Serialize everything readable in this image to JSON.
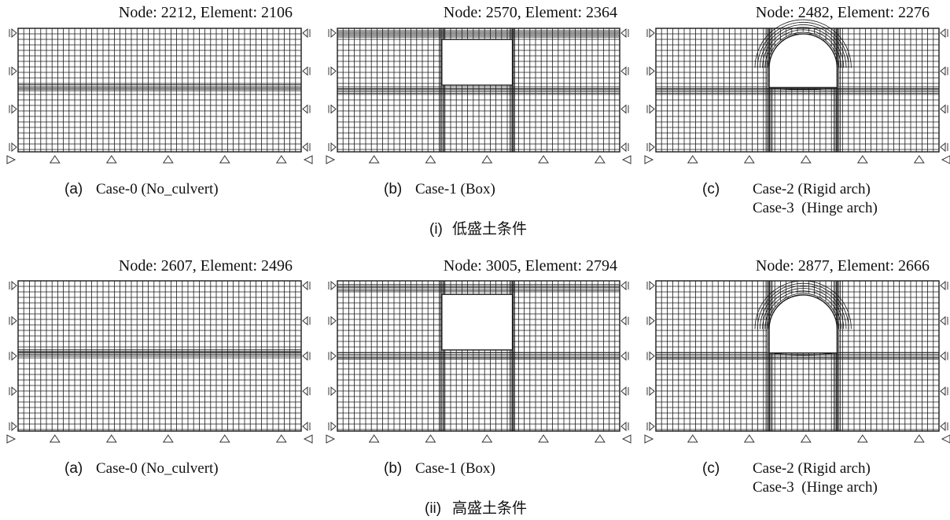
{
  "colors": {
    "mesh": "#1a1a1a",
    "support": "#333333",
    "background": "#ffffff"
  },
  "rows": [
    {
      "row_label": "(i)",
      "row_title": "低盛土条件",
      "panels": [
        {
          "id": "a",
          "shape": "none",
          "label": "(a)",
          "case_lines": [
            "Case-0 (No_culvert)"
          ],
          "node_element": "Node: 2212, Element: 2106",
          "dense_band_count": 1
        },
        {
          "id": "b",
          "shape": "box",
          "label": "(b)",
          "case_lines": [
            "Case-1 (Box)"
          ],
          "node_element": "Node: 2570, Element: 2364",
          "dense_band_count": 2
        },
        {
          "id": "c",
          "shape": "arch",
          "label": "(c)",
          "case_lines": [
            "Case-2 (Rigid arch)",
            "Case-3  (Hinge arch)"
          ],
          "node_element": "Node: 2482, Element: 2276",
          "dense_band_count": 1
        }
      ]
    },
    {
      "row_label": "(ii)",
      "row_title": "高盛土条件",
      "panels": [
        {
          "id": "a",
          "shape": "none",
          "label": "(a)",
          "case_lines": [
            "Case-0 (No_culvert)"
          ],
          "node_element": "Node: 2607, Element: 2496",
          "dense_band_count": 1
        },
        {
          "id": "b",
          "shape": "box",
          "label": "(b)",
          "case_lines": [
            "Case-1 (Box)"
          ],
          "node_element": "Node: 3005, Element: 2794",
          "dense_band_count": 2
        },
        {
          "id": "c",
          "shape": "arch",
          "label": "(c)",
          "case_lines": [
            "Case-2 (Rigid arch)",
            "Case-3  (Hinge arch)"
          ],
          "node_element": "Node: 2877, Element: 2666",
          "dense_band_count": 1
        }
      ]
    }
  ]
}
